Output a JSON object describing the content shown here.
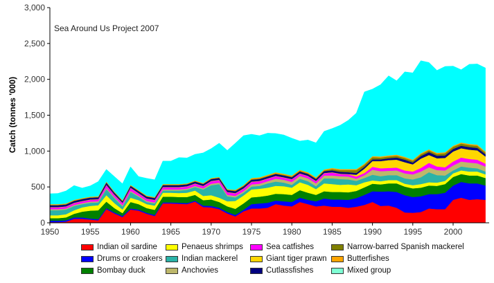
{
  "chart_data": {
    "type": "area",
    "stacked": true,
    "title": "",
    "annotation": "Sea Around Us Project 2007",
    "xlabel": "",
    "ylabel": "Catch (tonnes '000)",
    "xlim": [
      1950,
      2004
    ],
    "ylim": [
      0,
      3000
    ],
    "yticks": [
      0,
      500,
      1000,
      1500,
      2000,
      2500,
      3000
    ],
    "ytick_labels": [
      "0",
      "500",
      "1,000",
      "1,500",
      "2,000",
      "2,500",
      "3,000"
    ],
    "xticks": [
      1950,
      1955,
      1960,
      1965,
      1970,
      1975,
      1980,
      1985,
      1990,
      1995,
      2000
    ],
    "xtick_labels": [
      "1950",
      "1955",
      "1960",
      "1965",
      "1970",
      "1975",
      "1980",
      "1985",
      "1990",
      "1995",
      "2000"
    ],
    "grid": false,
    "legend_position": "bottom",
    "x": [
      1950,
      1951,
      1952,
      1953,
      1954,
      1955,
      1956,
      1957,
      1958,
      1959,
      1960,
      1961,
      1962,
      1963,
      1964,
      1965,
      1966,
      1967,
      1968,
      1969,
      1970,
      1971,
      1972,
      1973,
      1974,
      1975,
      1976,
      1977,
      1978,
      1979,
      1980,
      1981,
      1982,
      1983,
      1984,
      1985,
      1986,
      1987,
      1988,
      1989,
      1990,
      1991,
      1992,
      1993,
      1994,
      1995,
      1996,
      1997,
      1998,
      1999,
      2000,
      2001,
      2002,
      2003,
      2004
    ],
    "series": [
      {
        "name": "Indian oil sardine",
        "color": "#ff0000",
        "values": [
          10,
          10,
          15,
          55,
          55,
          45,
          35,
          190,
          130,
          80,
          185,
          170,
          125,
          95,
          270,
          270,
          265,
          260,
          295,
          220,
          215,
          190,
          130,
          90,
          160,
          200,
          200,
          210,
          260,
          240,
          230,
          290,
          260,
          230,
          240,
          225,
          225,
          210,
          225,
          250,
          290,
          235,
          240,
          210,
          145,
          140,
          150,
          200,
          190,
          190,
          320,
          350,
          320,
          330,
          320
        ]
      },
      {
        "name": "Drums or croakers",
        "color": "#0000ff",
        "values": [
          20,
          20,
          20,
          20,
          20,
          15,
          15,
          15,
          15,
          15,
          15,
          15,
          15,
          15,
          15,
          15,
          15,
          15,
          15,
          20,
          20,
          20,
          20,
          20,
          20,
          60,
          70,
          70,
          50,
          60,
          60,
          60,
          60,
          70,
          100,
          100,
          100,
          110,
          120,
          140,
          150,
          200,
          200,
          220,
          240,
          220,
          220,
          200,
          210,
          230,
          200,
          220,
          230,
          220,
          200
        ]
      },
      {
        "name": "Bombay duck",
        "color": "#008000",
        "values": [
          35,
          35,
          40,
          50,
          80,
          110,
          125,
          90,
          60,
          40,
          90,
          75,
          65,
          70,
          80,
          80,
          80,
          85,
          80,
          75,
          90,
          80,
          80,
          85,
          90,
          95,
          95,
          100,
          95,
          100,
          100,
          105,
          100,
          90,
          100,
          105,
          105,
          105,
          100,
          105,
          105,
          100,
          110,
          120,
          120,
          120,
          120,
          120,
          115,
          120,
          120,
          110,
          110,
          110,
          105
        ]
      },
      {
        "name": "Penaeus shrimps",
        "color": "#ffff00",
        "values": [
          40,
          40,
          45,
          50,
          60,
          65,
          70,
          90,
          70,
          50,
          60,
          55,
          55,
          60,
          55,
          55,
          55,
          60,
          60,
          60,
          60,
          60,
          70,
          110,
          110,
          110,
          110,
          110,
          110,
          110,
          100,
          110,
          110,
          80,
          110,
          110,
          100,
          110,
          80,
          70,
          45,
          45,
          45,
          45,
          40,
          45,
          50,
          45,
          45,
          45,
          50,
          50,
          55,
          55,
          50
        ]
      },
      {
        "name": "Indian mackerel",
        "color": "#2ab3a8",
        "values": [
          70,
          70,
          65,
          60,
          45,
          45,
          40,
          85,
          70,
          45,
          80,
          50,
          30,
          30,
          30,
          30,
          35,
          40,
          50,
          90,
          140,
          190,
          70,
          50,
          40,
          40,
          40,
          60,
          60,
          50,
          40,
          50,
          50,
          40,
          70,
          80,
          80,
          70,
          60,
          60,
          80,
          70,
          70,
          70,
          75,
          80,
          95,
          140,
          105,
          75,
          40,
          55,
          55,
          45,
          40
        ]
      },
      {
        "name": "Anchovies",
        "color": "#bdb76b",
        "values": [
          15,
          15,
          15,
          15,
          15,
          15,
          15,
          15,
          15,
          15,
          15,
          15,
          15,
          15,
          15,
          15,
          15,
          15,
          15,
          15,
          20,
          20,
          20,
          20,
          20,
          30,
          30,
          30,
          40,
          40,
          40,
          40,
          40,
          40,
          40,
          40,
          40,
          40,
          30,
          40,
          70,
          70,
          60,
          65,
          70,
          70,
          80,
          70,
          70,
          70,
          70,
          70,
          70,
          70,
          70
        ]
      },
      {
        "name": "Sea catfishes",
        "color": "#ff00ff",
        "values": [
          25,
          25,
          25,
          25,
          25,
          25,
          25,
          40,
          30,
          30,
          40,
          30,
          30,
          30,
          30,
          30,
          30,
          30,
          30,
          30,
          35,
          35,
          35,
          35,
          35,
          35,
          35,
          35,
          35,
          30,
          35,
          30,
          30,
          30,
          30,
          40,
          30,
          30,
          30,
          30,
          40,
          40,
          40,
          40,
          40,
          40,
          50,
          60,
          50,
          45,
          55,
          55,
          50,
          50,
          40
        ]
      },
      {
        "name": "Giant tiger prawn",
        "color": "#ffd700",
        "values": [
          5,
          5,
          5,
          5,
          5,
          5,
          5,
          5,
          5,
          5,
          5,
          5,
          5,
          5,
          5,
          5,
          5,
          5,
          5,
          5,
          5,
          5,
          5,
          5,
          5,
          5,
          5,
          5,
          5,
          5,
          5,
          5,
          5,
          5,
          5,
          5,
          5,
          5,
          25,
          60,
          80,
          100,
          110,
          110,
          115,
          100,
          130,
          110,
          115,
          130,
          140,
          130,
          130,
          130,
          100
        ]
      },
      {
        "name": "Cutlassfishes",
        "color": "#000080",
        "values": [
          25,
          25,
          25,
          25,
          25,
          25,
          25,
          30,
          25,
          20,
          25,
          25,
          25,
          25,
          25,
          25,
          25,
          25,
          25,
          25,
          25,
          25,
          25,
          25,
          25,
          25,
          25,
          25,
          25,
          25,
          25,
          25,
          25,
          25,
          25,
          25,
          25,
          25,
          25,
          25,
          25,
          25,
          25,
          30,
          35,
          25,
          35,
          40,
          35,
          35,
          35,
          35,
          35,
          35,
          30
        ]
      },
      {
        "name": "Narrow-barred Spanish mackerel",
        "color": "#808000",
        "values": [
          5,
          5,
          5,
          5,
          5,
          5,
          5,
          5,
          5,
          5,
          5,
          5,
          5,
          5,
          5,
          5,
          5,
          5,
          5,
          5,
          5,
          5,
          5,
          10,
          10,
          10,
          10,
          10,
          10,
          10,
          10,
          10,
          10,
          10,
          10,
          20,
          25,
          30,
          40,
          30,
          30,
          25,
          25,
          25,
          25,
          25,
          25,
          25,
          25,
          30,
          30,
          30,
          30,
          30,
          25
        ]
      },
      {
        "name": "Butterfishes",
        "color": "#ffa500",
        "values": [
          10,
          10,
          10,
          10,
          10,
          10,
          10,
          10,
          10,
          10,
          10,
          10,
          10,
          10,
          10,
          10,
          10,
          10,
          10,
          10,
          10,
          10,
          10,
          10,
          10,
          15,
          15,
          15,
          15,
          15,
          15,
          15,
          15,
          15,
          15,
          15,
          15,
          15,
          15,
          15,
          15,
          15,
          15,
          15,
          15,
          15,
          15,
          15,
          15,
          15,
          15,
          15,
          15,
          15,
          15
        ]
      },
      {
        "name": "Mixed group",
        "color": "#00ffff",
        "legend_color": "#7fffd4",
        "values": [
          145,
          150,
          175,
          200,
          140,
          150,
          205,
          170,
          210,
          230,
          250,
          190,
          240,
          240,
          320,
          320,
          370,
          355,
          365,
          420,
          410,
          470,
          540,
          650,
          690,
          610,
          580,
          580,
          540,
          540,
          520,
          400,
          450,
          480,
          530,
          550,
          610,
          680,
          780,
          1000,
          935,
          1000,
          1110,
          1030,
          1185,
          1210,
          1290,
          1210,
          1150,
          1195,
          1110,
          1015,
          1110,
          1125,
          1165
        ]
      }
    ],
    "legend": [
      {
        "label": "Indian oil sardine",
        "color": "#ff0000"
      },
      {
        "label": "Drums or croakers",
        "color": "#0000ff"
      },
      {
        "label": "Bombay duck",
        "color": "#008000"
      },
      {
        "label": "Penaeus shrimps",
        "color": "#ffff00"
      },
      {
        "label": "Indian mackerel",
        "color": "#2ab3a8"
      },
      {
        "label": "Anchovies",
        "color": "#bdb76b"
      },
      {
        "label": "Sea catfishes",
        "color": "#ff00ff"
      },
      {
        "label": "Giant tiger prawn",
        "color": "#ffd700"
      },
      {
        "label": "Cutlassfishes",
        "color": "#000080"
      },
      {
        "label": "Narrow-barred Spanish mackerel",
        "color": "#808000"
      },
      {
        "label": "Butterfishes",
        "color": "#ffa500"
      },
      {
        "label": "Mixed group",
        "color": "#7fffd4"
      }
    ]
  }
}
